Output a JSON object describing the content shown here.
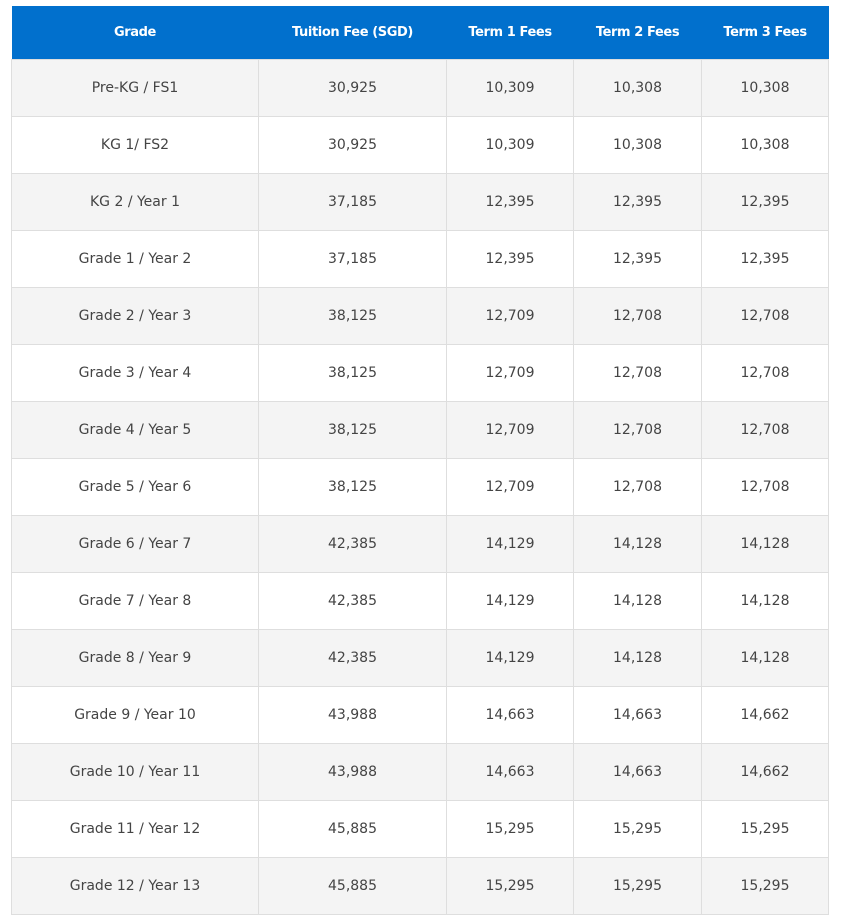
{
  "table": {
    "headers": [
      "Grade",
      "Tuition Fee (SGD)",
      "Term 1 Fees",
      "Term 2 Fees",
      "Term 3 Fees"
    ],
    "rows": [
      [
        "Pre-KG / FS1",
        "30,925",
        "10,309",
        "10,308",
        "10,308"
      ],
      [
        "KG 1/ FS2",
        "30,925",
        "10,309",
        "10,308",
        "10,308"
      ],
      [
        "KG 2 / Year 1",
        "37,185",
        "12,395",
        "12,395",
        "12,395"
      ],
      [
        "Grade 1 / Year 2",
        "37,185",
        "12,395",
        "12,395",
        "12,395"
      ],
      [
        "Grade 2 / Year 3",
        "38,125",
        "12,709",
        "12,708",
        "12,708"
      ],
      [
        "Grade 3 / Year 4",
        "38,125",
        "12,709",
        "12,708",
        "12,708"
      ],
      [
        "Grade 4 / Year 5",
        "38,125",
        "12,709",
        "12,708",
        "12,708"
      ],
      [
        "Grade 5 / Year 6",
        "38,125",
        "12,709",
        "12,708",
        "12,708"
      ],
      [
        "Grade 6 / Year 7",
        "42,385",
        "14,129",
        "14,128",
        "14,128"
      ],
      [
        "Grade 7 / Year 8",
        "42,385",
        "14,129",
        "14,128",
        "14,128"
      ],
      [
        "Grade 8 / Year 9",
        "42,385",
        "14,129",
        "14,128",
        "14,128"
      ],
      [
        "Grade 9 / Year 10",
        "43,988",
        "14,663",
        "14,663",
        "14,662"
      ],
      [
        "Grade 10 / Year 11",
        "43,988",
        "14,663",
        "14,663",
        "14,662"
      ],
      [
        "Grade 11 / Year 12",
        "45,885",
        "15,295",
        "15,295",
        "15,295"
      ],
      [
        "Grade 12 / Year 13",
        "45,885",
        "15,295",
        "15,295",
        "15,295"
      ]
    ]
  },
  "colors": {
    "header_bg": "#0170cd",
    "stripe": "#f4f4f4"
  }
}
